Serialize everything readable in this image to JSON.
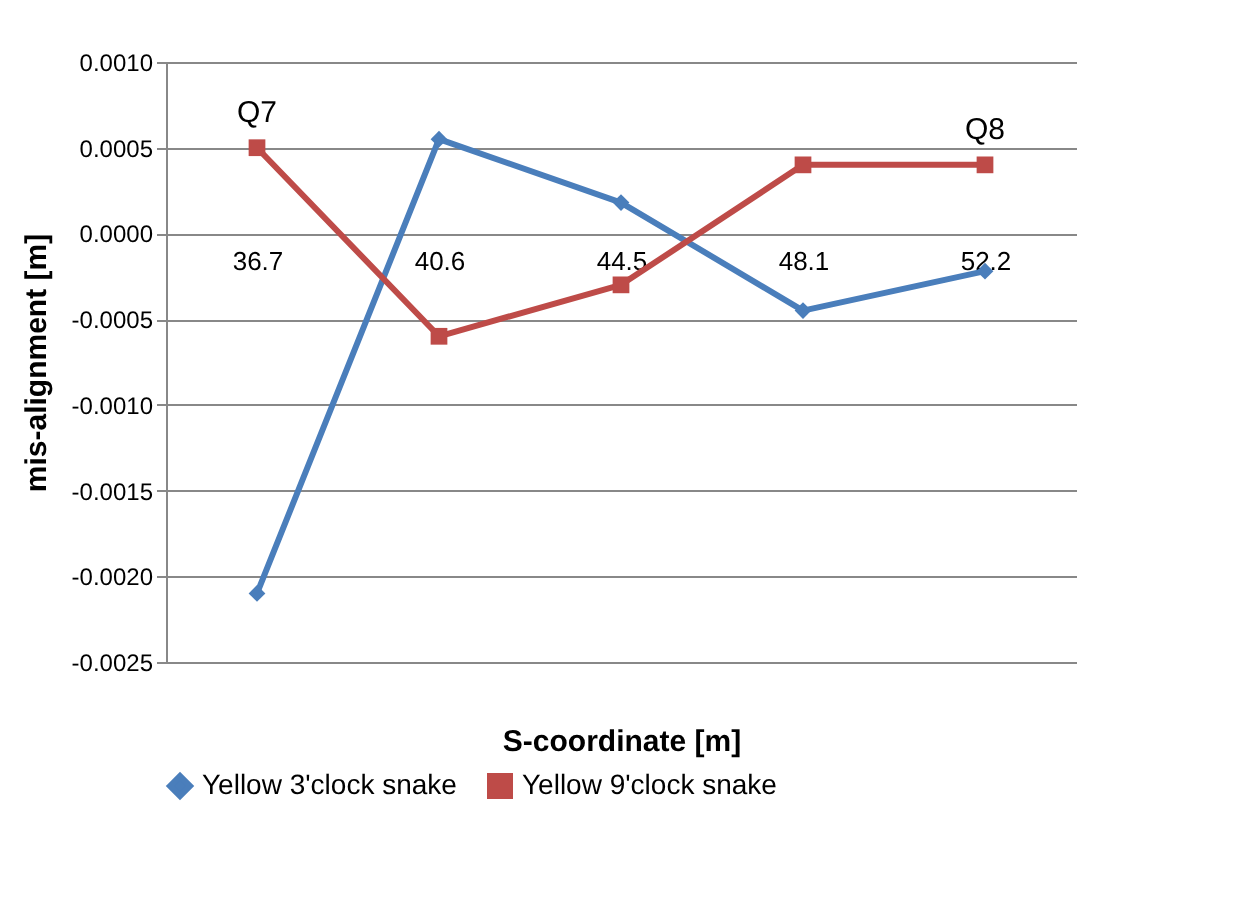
{
  "chart_data": {
    "type": "line",
    "xlabel": "S-coordinate [m]",
    "ylabel": "mis-alignment [m]",
    "categories": [
      "36.7",
      "40.6",
      "44.5",
      "48.1",
      "52.2"
    ],
    "series": [
      {
        "name": "Yellow 3'clock snake",
        "color": "#4a7ebb",
        "marker": "diamond",
        "values": [
          -0.0021,
          0.00055,
          0.00018,
          -0.00045,
          -0.00022
        ]
      },
      {
        "name": "Yellow 9'clock snake",
        "color": "#be4b48",
        "marker": "square",
        "values": [
          0.0005,
          -0.0006,
          -0.0003,
          0.0004,
          0.0004
        ]
      }
    ],
    "ylim": [
      -0.0025,
      0.001
    ],
    "yticks": [
      {
        "value": 0.001,
        "label": "0.0010"
      },
      {
        "value": 0.0005,
        "label": "0.0005"
      },
      {
        "value": 0,
        "label": "0.0000"
      },
      {
        "value": -0.0005,
        "label": "-0.0005"
      },
      {
        "value": -0.001,
        "label": "-0.0010"
      },
      {
        "value": -0.0015,
        "label": "-0.0015"
      },
      {
        "value": -0.002,
        "label": "-0.0020"
      },
      {
        "value": -0.0025,
        "label": "-0.0025"
      }
    ],
    "grid": "y",
    "legend": "bottom",
    "annotations": [
      {
        "text": "Q7",
        "x": "36.7",
        "y": 0.0005
      },
      {
        "text": "Q8",
        "x": "52.2",
        "y": 0.0004
      }
    ]
  }
}
